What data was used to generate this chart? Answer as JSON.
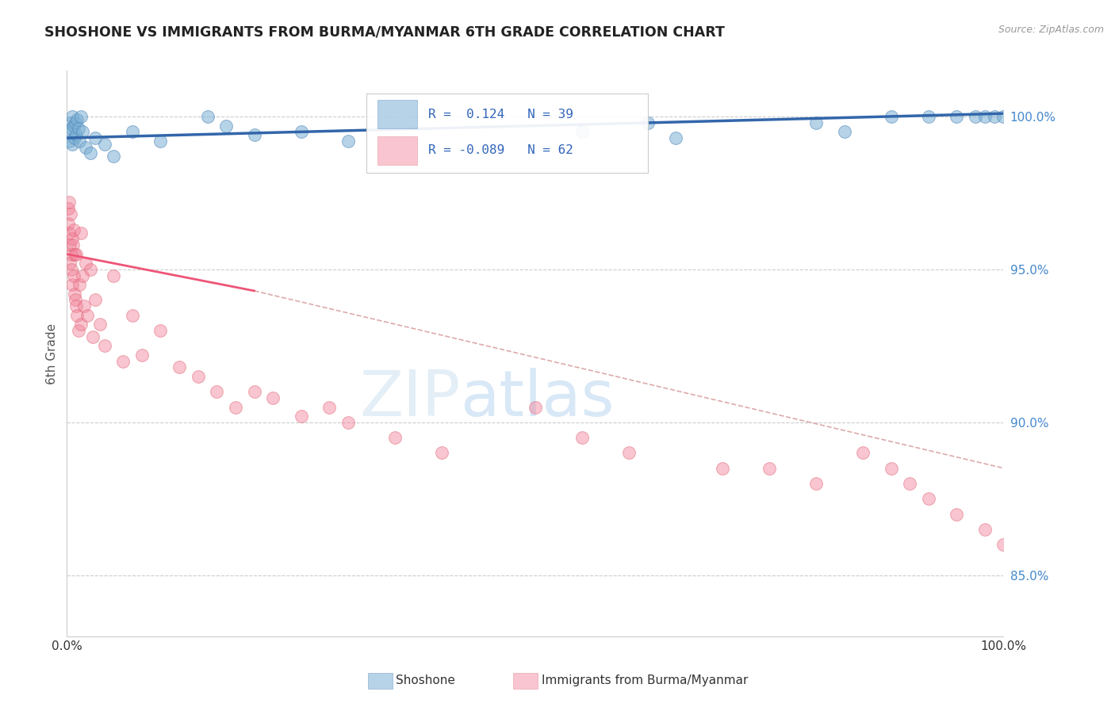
{
  "title": "SHOSHONE VS IMMIGRANTS FROM BURMA/MYANMAR 6TH GRADE CORRELATION CHART",
  "source": "Source: ZipAtlas.com",
  "ylabel": "6th Grade",
  "xlim": [
    0,
    100
  ],
  "ylim": [
    83.0,
    101.5
  ],
  "yticks": [
    85.0,
    90.0,
    95.0,
    100.0
  ],
  "ytick_labels": [
    "85.0%",
    "90.0%",
    "95.0%",
    "100.0%"
  ],
  "legend_r1": "R =  0.124",
  "legend_n1": "N = 39",
  "legend_r2": "R = -0.089",
  "legend_n2": "N = 62",
  "watermark_zip": "ZIP",
  "watermark_atlas": "atlas",
  "blue_color": "#7ab0d4",
  "blue_edge": "#5588bb",
  "pink_color": "#f08098",
  "pink_edge": "#e06070",
  "blue_line_color": "#3366aa",
  "pink_line_color": "#ee5577",
  "dash_color": "#ddaaaa",
  "blue_trend_x0": 0,
  "blue_trend_x1": 100,
  "blue_trend_y0": 99.3,
  "blue_trend_y1": 100.1,
  "pink_trend_x0": 0,
  "pink_trend_x1": 20,
  "pink_trend_y0": 95.5,
  "pink_trend_y1": 94.3,
  "pink_dash_x0": 20,
  "pink_dash_x1": 100,
  "pink_dash_y0": 94.3,
  "pink_dash_y1": 88.5,
  "shoshone_x": [
    0.2,
    0.3,
    0.4,
    0.5,
    0.6,
    0.6,
    0.7,
    0.8,
    0.9,
    1.0,
    1.1,
    1.2,
    1.3,
    1.5,
    1.7,
    2.0,
    2.5,
    3.0,
    4.0,
    5.0,
    7.0,
    10.0,
    15.0,
    17.0,
    20.0,
    25.0,
    30.0,
    55.0,
    62.0,
    65.0,
    80.0,
    83.0,
    88.0,
    92.0,
    95.0,
    97.0,
    98.0,
    99.0,
    100.0
  ],
  "shoshone_y": [
    99.2,
    99.8,
    99.5,
    99.6,
    99.1,
    100.0,
    99.7,
    99.3,
    99.8,
    99.4,
    99.9,
    99.6,
    99.2,
    100.0,
    99.5,
    99.0,
    98.8,
    99.3,
    99.1,
    98.7,
    99.5,
    99.2,
    100.0,
    99.7,
    99.4,
    99.5,
    99.2,
    99.5,
    99.8,
    99.3,
    99.8,
    99.5,
    100.0,
    100.0,
    100.0,
    100.0,
    100.0,
    100.0,
    100.0
  ],
  "burma_x": [
    0.1,
    0.15,
    0.2,
    0.25,
    0.3,
    0.35,
    0.4,
    0.45,
    0.5,
    0.55,
    0.6,
    0.65,
    0.7,
    0.75,
    0.8,
    0.85,
    0.9,
    1.0,
    1.0,
    1.1,
    1.2,
    1.3,
    1.5,
    1.5,
    1.7,
    1.8,
    2.0,
    2.2,
    2.5,
    2.8,
    3.0,
    3.5,
    4.0,
    5.0,
    6.0,
    7.0,
    8.0,
    10.0,
    12.0,
    14.0,
    16.0,
    18.0,
    20.0,
    22.0,
    25.0,
    28.0,
    30.0,
    35.0,
    40.0,
    50.0,
    55.0,
    60.0,
    70.0,
    75.0,
    80.0,
    85.0,
    88.0,
    90.0,
    92.0,
    95.0,
    98.0,
    100.0
  ],
  "burma_y": [
    97.0,
    96.5,
    96.2,
    97.2,
    95.8,
    95.2,
    96.8,
    95.5,
    95.0,
    96.0,
    94.5,
    95.8,
    96.3,
    94.8,
    94.2,
    95.5,
    94.0,
    95.5,
    93.8,
    93.5,
    93.0,
    94.5,
    96.2,
    93.2,
    94.8,
    93.8,
    95.2,
    93.5,
    95.0,
    92.8,
    94.0,
    93.2,
    92.5,
    94.8,
    92.0,
    93.5,
    92.2,
    93.0,
    91.8,
    91.5,
    91.0,
    90.5,
    91.0,
    90.8,
    90.2,
    90.5,
    90.0,
    89.5,
    89.0,
    90.5,
    89.5,
    89.0,
    88.5,
    88.5,
    88.0,
    89.0,
    88.5,
    88.0,
    87.5,
    87.0,
    86.5,
    86.0
  ]
}
